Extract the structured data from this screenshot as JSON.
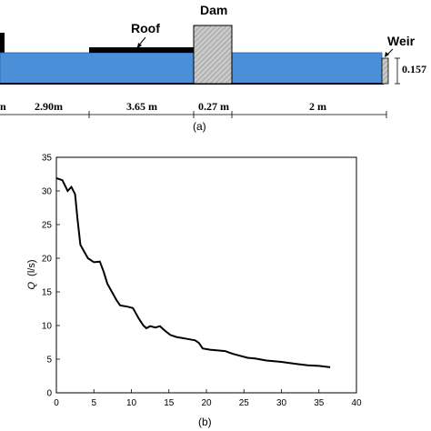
{
  "panel_a": {
    "labels": {
      "roof": "Roof",
      "dam": "Dam",
      "weir": "Weir",
      "weir_height": "0.157"
    },
    "dimensions": [
      "n",
      "2.90m",
      "3.65 m",
      "0.27 m",
      "2 m"
    ],
    "caption": "(a)",
    "colors": {
      "water": "#4a8fd8",
      "dam_fill": "#bdbdbd",
      "roof": "#000000"
    }
  },
  "panel_b": {
    "caption": "(b)",
    "ylabel_symbol": "Q",
    "ylabel_unit": "(l/s)"
  },
  "chart_data": {
    "type": "line",
    "title": "",
    "xlabel": "",
    "ylabel": "Q (l/s)",
    "xlim": [
      0,
      40
    ],
    "ylim": [
      0,
      35
    ],
    "xticks": [
      0,
      5,
      10,
      15,
      20,
      25,
      30,
      35,
      40
    ],
    "yticks": [
      0,
      5,
      10,
      15,
      20,
      25,
      30,
      35
    ],
    "grid": false,
    "series": [
      {
        "color": "#000000",
        "x": [
          0,
          0.8,
          1.5,
          2.0,
          2.5,
          2.8,
          3.2,
          3.6,
          4.2,
          5.0,
          5.8,
          6.3,
          6.8,
          7.5,
          8.0,
          8.5,
          9.5,
          10.2,
          11.0,
          11.6,
          12.0,
          12.5,
          13.2,
          13.8,
          14.5,
          15.2,
          16.0,
          17.5,
          18.5,
          19.0,
          19.5,
          20.5,
          21.5,
          22.5,
          23.5,
          24.5,
          25.5,
          26.5,
          28.0,
          30.0,
          32.0,
          33.5,
          35.0,
          36.5
        ],
        "y": [
          31.9,
          31.6,
          30.0,
          30.6,
          29.5,
          26.0,
          22.0,
          21.2,
          20.0,
          19.4,
          19.5,
          18.0,
          16.2,
          14.8,
          13.8,
          13.0,
          12.8,
          12.6,
          11.0,
          10.0,
          9.6,
          9.9,
          9.7,
          9.9,
          9.2,
          8.6,
          8.3,
          8.0,
          7.8,
          7.4,
          6.6,
          6.4,
          6.3,
          6.2,
          5.8,
          5.5,
          5.2,
          5.1,
          4.8,
          4.6,
          4.3,
          4.1,
          4.0,
          3.8
        ]
      }
    ]
  }
}
